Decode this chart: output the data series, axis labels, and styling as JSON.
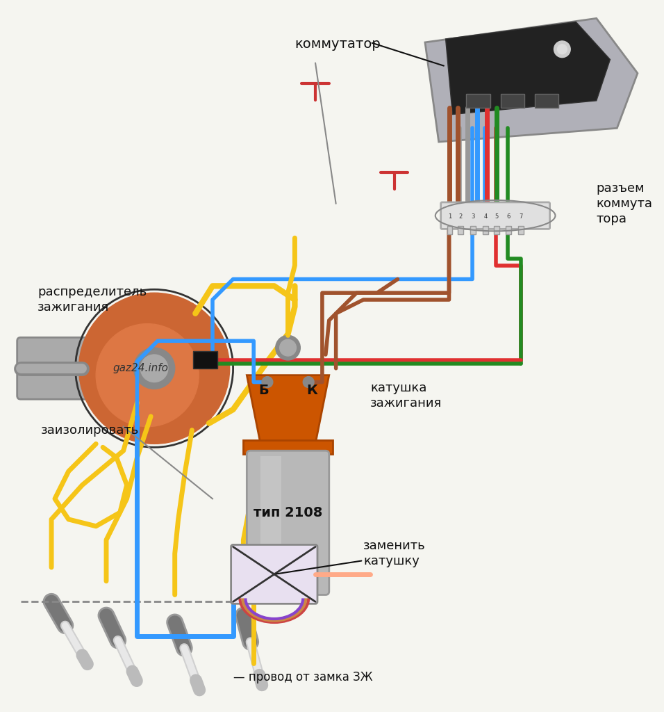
{
  "bg_color": "#f5f5f0",
  "title": "",
  "labels": {
    "kommutator": "коммутатор",
    "razyem": "разъем\nкоммута\nтора",
    "raspredelitel": "распределитель\nзажигания",
    "zaizolirovat": "заизолировать",
    "katushka": "катушка\nзажигания",
    "tip": "тип 2108",
    "zamenity": "заменить\nкатушку",
    "provod": "— провод от замка ЗЖ",
    "B_label": "Б",
    "K_label": "К",
    "watermark": "gaz24.info"
  },
  "colors": {
    "yellow": "#f5c518",
    "red": "#e03030",
    "green": "#228B22",
    "blue": "#3399ff",
    "brown": "#a0522d",
    "gray_wire": "#888888",
    "black": "#222222",
    "white": "#ffffff",
    "light_gray": "#cccccc",
    "connector_bg": "#e8e8e8",
    "distributor_orange": "#cc6633",
    "coil_orange": "#cc5500",
    "coil_gray": "#aaaaaa",
    "spark_gray": "#b0b0b0"
  }
}
